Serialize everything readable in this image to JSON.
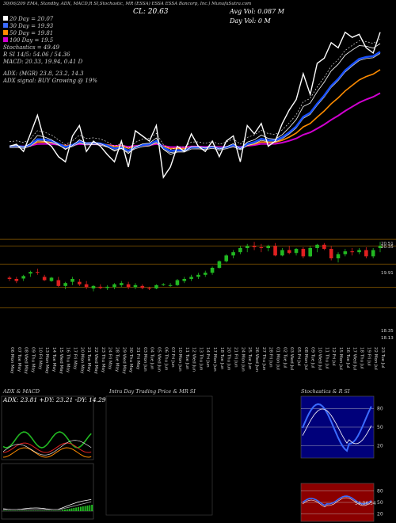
{
  "header": {
    "top_line": "30/06/209  EMA, Standby, ADX, MACD,R   SI,Stochastic, MR   (ESSA) ESSA   ESSA   Bancorp, Inc.) MunafaSutra.com",
    "close": "CL: 20.63",
    "avg_vol": "Avg Vol: 0.087 M",
    "day_vol": "Day Vol: 0   M",
    "legend": [
      {
        "label": "20  Day = 20.07",
        "color": "#ffffff"
      },
      {
        "label": "30  Day = 19.93",
        "color": "#3b6cff"
      },
      {
        "label": "50  Day = 19.81",
        "color": "#ff8c00"
      },
      {
        "label": "100  Day = 19.5",
        "color": "#d000d0"
      }
    ],
    "stoch": "Stochastics = 49.49",
    "rsi": "R         SI 14/5: 54.06 / 54.36",
    "macd": "MACD: 20.33, 19.94, 0.41 D",
    "adx": "ADX:                  (MGR) 23.8, 23.2, 14.3",
    "adx_signal": "ADX  signal:                    BUY Growing @ 19%"
  },
  "price_axis": [
    "20.51",
    "20.35",
    "19.91",
    "18.35",
    "18.13"
  ],
  "dates": [
    "06 Mon May",
    "07 Tue May",
    "08 Wed May",
    "09 Thu May",
    "10 Fri May",
    "13 Mon May",
    "14 Tue May",
    "15 Wed May",
    "16 Thu May",
    "17 Fri May",
    "20 Mon May",
    "21 Tue May",
    "22 Wed May",
    "23 Thu May",
    "24 Fri May",
    "28 Tue May",
    "29 Wed May",
    "30 Thu May",
    "31 Fri May",
    "03 Mon Jun",
    "04 Tue Jun",
    "05 Wed Jun",
    "06 Thu Jun",
    "07 Fri Jun",
    "10 Mon Jun",
    "11 Tue Jun",
    "12 Wed Jun",
    "13 Thu Jun",
    "14 Fri Jun",
    "17 Mon Jun",
    "18 Tue Jun",
    "20 Thu Jun",
    "21 Fri Jun",
    "24 Mon Jun",
    "25 Tue Jun",
    "26 Wed Jun",
    "27 Thu Jun",
    "28 Fri Jun",
    "01 Mon Jul",
    "02 Tue Jul",
    "03 Wed Jul",
    "05 Fri Jul",
    "08 Mon Jul",
    "09 Tue Jul",
    "10 Wed Jul",
    "11 Thu Jul",
    "12 Fri Jul",
    "15 Mon Jul",
    "16 Tue Jul",
    "17 Wed Jul",
    "18 Thu Jul",
    "19 Fri Jul",
    "22 Mon Jul",
    "23 Tue Jul"
  ],
  "panels": {
    "adx_title": "ADX  & MACD",
    "adx_values": "ADX: 23.81 +DY: 23.21 -DY: 14.29",
    "intraday_title": "Intra Day Trading Price  & MR                          SI",
    "stoch_title": "Stochastics & R              SI",
    "stoch_axis": [
      "80",
      "50",
      "20"
    ],
    "rsi_axis": [
      "80",
      "50",
      "20"
    ],
    "rsi_label": "54.06.54"
  },
  "chart_data": [
    {
      "type": "line",
      "title": "EMA",
      "series": [
        {
          "name": "20  Day",
          "color": "#ffffff"
        },
        {
          "name": "30  Day",
          "color": "#3b6cff"
        },
        {
          "name": "50  Day",
          "color": "#ff8c00"
        },
        {
          "name": "100  Day",
          "color": "#d000d0"
        }
      ],
      "price_line": [
        19.5,
        19.52,
        19.45,
        19.62,
        19.8,
        19.55,
        19.5,
        19.4,
        19.35,
        19.6,
        19.7,
        19.45,
        19.55,
        19.5,
        19.42,
        19.35,
        19.55,
        19.3,
        19.65,
        19.6,
        19.55,
        19.7,
        19.2,
        19.3,
        19.5,
        19.45,
        19.62,
        19.5,
        19.45,
        19.55,
        19.4,
        19.55,
        19.6,
        19.35,
        19.7,
        19.62,
        19.72,
        19.5,
        19.55,
        19.72,
        19.85,
        19.95,
        20.2,
        20.0,
        20.3,
        20.35,
        20.5,
        20.45,
        20.6,
        20.55,
        20.58,
        20.45,
        20.4,
        20.6
      ],
      "ylim": [
        19.0,
        20.85
      ]
    },
    {
      "type": "candlestick",
      "ohlc": [
        [
          19.58,
          19.62,
          19.5,
          19.55
        ],
        [
          19.55,
          19.6,
          19.45,
          19.5
        ],
        [
          19.56,
          19.65,
          19.5,
          19.62
        ],
        [
          19.68,
          19.75,
          19.6,
          19.72
        ],
        [
          19.72,
          19.8,
          19.65,
          19.7
        ],
        [
          19.6,
          19.65,
          19.5,
          19.52
        ],
        [
          19.5,
          19.6,
          19.48,
          19.58
        ],
        [
          19.52,
          19.6,
          19.35,
          19.38
        ],
        [
          19.38,
          19.48,
          19.3,
          19.45
        ],
        [
          19.48,
          19.6,
          19.4,
          19.55
        ],
        [
          19.48,
          19.55,
          19.38,
          19.42
        ],
        [
          19.42,
          19.5,
          19.3,
          19.35
        ],
        [
          19.32,
          19.4,
          19.25,
          19.38
        ],
        [
          19.36,
          19.42,
          19.3,
          19.33
        ],
        [
          19.33,
          19.4,
          19.28,
          19.36
        ],
        [
          19.35,
          19.45,
          19.3,
          19.42
        ],
        [
          19.4,
          19.5,
          19.35,
          19.45
        ],
        [
          19.42,
          19.48,
          19.3,
          19.35
        ],
        [
          19.35,
          19.45,
          19.3,
          19.4
        ],
        [
          19.38,
          19.42,
          19.3,
          19.33
        ],
        [
          19.33,
          19.36,
          19.28,
          19.32
        ],
        [
          19.32,
          19.42,
          19.3,
          19.4
        ],
        [
          19.4,
          19.45,
          19.38,
          19.42
        ],
        [
          19.38,
          19.45,
          19.35,
          19.4
        ],
        [
          19.4,
          19.55,
          19.38,
          19.52
        ],
        [
          19.5,
          19.6,
          19.45,
          19.55
        ],
        [
          19.55,
          19.65,
          19.5,
          19.6
        ],
        [
          19.6,
          19.7,
          19.55,
          19.65
        ],
        [
          19.65,
          19.75,
          19.6,
          19.7
        ],
        [
          19.7,
          19.85,
          19.65,
          19.82
        ],
        [
          19.82,
          20.0,
          19.8,
          19.98
        ],
        [
          19.98,
          20.15,
          19.95,
          20.12
        ],
        [
          20.12,
          20.25,
          20.05,
          20.2
        ],
        [
          20.2,
          20.35,
          20.15,
          20.3
        ],
        [
          20.3,
          20.4,
          20.2,
          20.35
        ],
        [
          20.35,
          20.45,
          20.25,
          20.32
        ],
        [
          20.32,
          20.4,
          20.2,
          20.3
        ],
        [
          20.3,
          20.38,
          20.22,
          20.35
        ],
        [
          20.35,
          20.42,
          20.1,
          20.12
        ],
        [
          20.12,
          20.3,
          20.1,
          20.25
        ],
        [
          20.25,
          20.35,
          20.15,
          20.18
        ],
        [
          20.18,
          20.3,
          20.12,
          20.28
        ],
        [
          20.28,
          20.32,
          20.05,
          20.1
        ],
        [
          20.1,
          20.35,
          20.08,
          20.3
        ],
        [
          20.3,
          20.4,
          20.2,
          20.38
        ],
        [
          20.38,
          20.42,
          20.25,
          20.28
        ],
        [
          20.28,
          20.35,
          20.0,
          20.05
        ],
        [
          20.05,
          20.2,
          19.95,
          20.15
        ],
        [
          20.15,
          20.28,
          20.1,
          20.22
        ],
        [
          20.22,
          20.3,
          20.12,
          20.2
        ],
        [
          20.2,
          20.3,
          20.15,
          20.25
        ],
        [
          20.25,
          20.32,
          20.05,
          20.1
        ],
        [
          20.1,
          20.3,
          20.05,
          20.25
        ],
        [
          20.3,
          20.45,
          20.2,
          20.35
        ]
      ],
      "ylim": [
        18.05,
        20.55
      ]
    }
  ],
  "colors": {
    "up": "#22b822",
    "down": "#e02020",
    "sma_blue": "#1850ff",
    "rsi_bg": "#8b0000",
    "stoch_bg": "#00007a"
  }
}
